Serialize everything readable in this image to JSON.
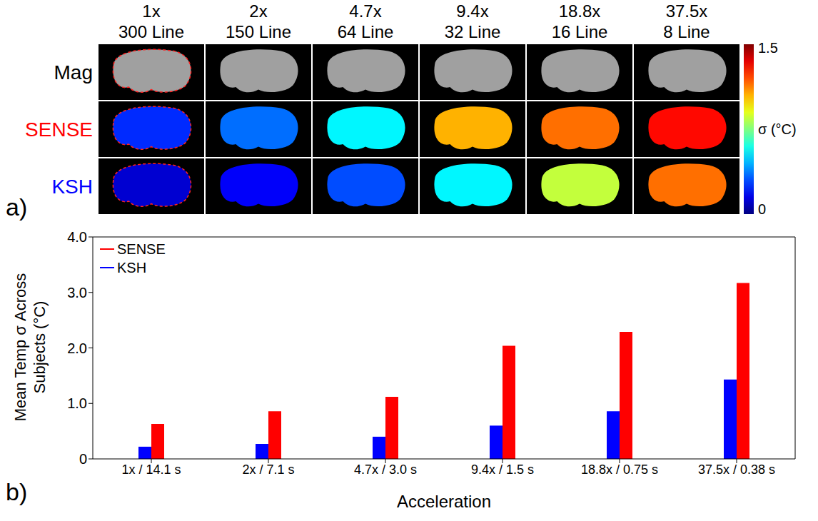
{
  "chart_data": [
    {
      "type": "image_grid",
      "panel_label": "a)",
      "columns": [
        {
          "label": "1x",
          "sublabel": "300 Line"
        },
        {
          "label": "2x",
          "sublabel": "150 Line"
        },
        {
          "label": "4.7x",
          "sublabel": "64 Line"
        },
        {
          "label": "9.4x",
          "sublabel": "32 Line"
        },
        {
          "label": "18.8x",
          "sublabel": "16 Line"
        },
        {
          "label": "37.5x",
          "sublabel": "8 Line"
        }
      ],
      "rows": [
        {
          "name": "Mag",
          "color": "#000000"
        },
        {
          "name": "SENSE",
          "color": "#ff0000",
          "values": [
            0.25,
            0.35,
            0.55,
            1.05,
            1.15,
            1.3
          ]
        },
        {
          "name": "KSH",
          "color": "#0000ff",
          "values": [
            0.12,
            0.18,
            0.3,
            0.55,
            0.85,
            1.15
          ]
        }
      ],
      "colorbar": {
        "range": [
          0,
          1.5
        ],
        "ticks": [
          0,
          1.5
        ],
        "label": "σ (°C)"
      }
    },
    {
      "type": "bar",
      "panel_label": "b)",
      "categories": [
        "1x / 14.1 s",
        "2x / 7.1 s",
        "4.7x / 3.0 s",
        "9.4x / 1.5 s",
        "18.8x / 0.75 s",
        "37.5x / 0.38 s"
      ],
      "series": [
        {
          "name": "SENSE",
          "color": "#ff0000",
          "values": [
            0.63,
            0.86,
            1.12,
            2.04,
            2.29,
            3.17
          ]
        },
        {
          "name": "KSH",
          "color": "#0000ff",
          "values": [
            0.22,
            0.27,
            0.4,
            0.6,
            0.86,
            1.43
          ]
        }
      ],
      "xlabel": "Acceleration",
      "ylabel": "Mean Temp σ Across Subjects (°C)",
      "ylim": [
        0,
        4
      ],
      "yticks": [
        0,
        {
          "value": 1,
          "label": "1.0"
        },
        {
          "value": 2,
          "label": "2.0"
        },
        {
          "value": 3,
          "label": "3.0"
        },
        {
          "value": 4,
          "label": "4.0"
        }
      ],
      "legend": "upper left",
      "grid": false
    }
  ]
}
